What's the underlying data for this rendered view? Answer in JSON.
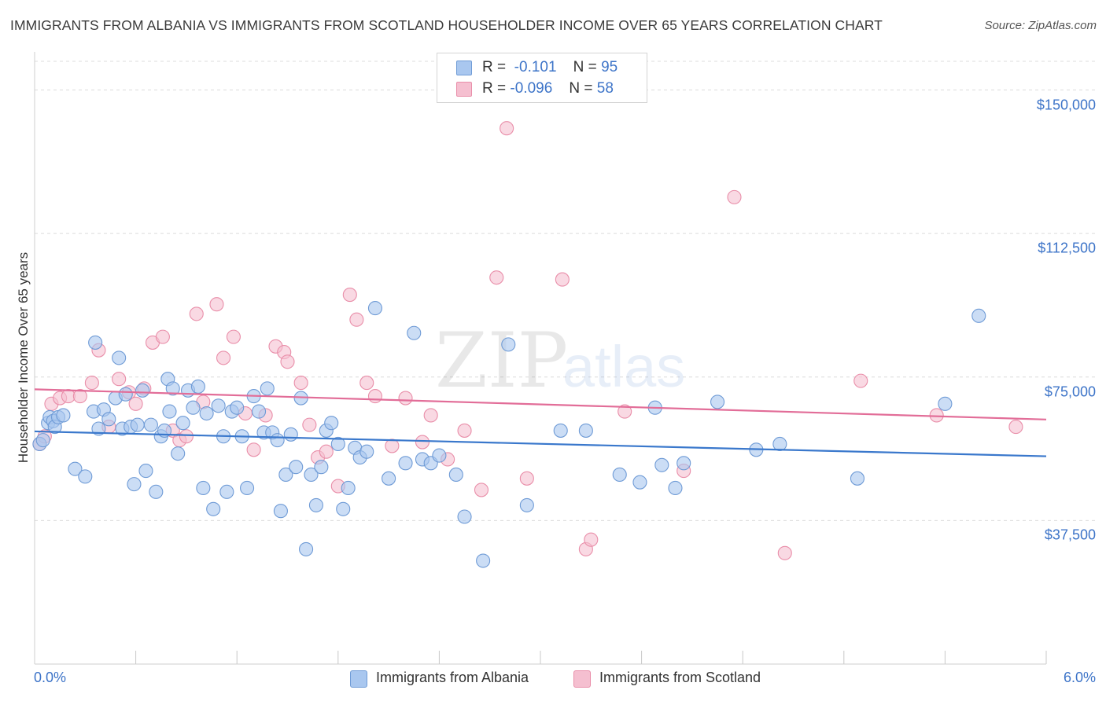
{
  "title": "IMMIGRANTS FROM ALBANIA VS IMMIGRANTS FROM SCOTLAND HOUSEHOLDER INCOME OVER 65 YEARS CORRELATION CHART",
  "source": "Source: ZipAtlas.com",
  "watermark": {
    "zip": "ZIP",
    "atlas": "atlas"
  },
  "colors": {
    "blue_fill": "#a9c7ef",
    "blue_stroke": "#6f9bd6",
    "blue_line": "#3a78cc",
    "pink_fill": "#f5bfd0",
    "pink_stroke": "#e98ea9",
    "pink_line": "#e26d98",
    "axis_text": "#3d74c8",
    "grid": "#dcdcdc"
  },
  "legend": {
    "r_label": "R =",
    "n_label": "N =",
    "rows": [
      {
        "name": "Immigrants from Albania",
        "r": "-0.101",
        "n": "95"
      },
      {
        "name": "Immigrants from Scotland",
        "r": "-0.096",
        "n": "58"
      }
    ]
  },
  "chart_data": {
    "type": "scatter",
    "title": "IMMIGRANTS FROM ALBANIA VS IMMIGRANTS FROM SCOTLAND HOUSEHOLDER INCOME OVER 65 YEARS CORRELATION CHART",
    "xlabel": "",
    "ylabel": "Householder Income Over 65 years",
    "xlim": [
      0,
      6
    ],
    "ylim": [
      0,
      157500
    ],
    "x_tick_labels": [
      "0.0%",
      "6.0%"
    ],
    "y_ticks": [
      37500,
      75000,
      112500,
      150000
    ],
    "y_tick_labels": [
      "$37,500",
      "$75,000",
      "$112,500",
      "$150,000"
    ],
    "legend_position": "top-center",
    "series": [
      {
        "name": "Immigrants from Albania",
        "trend": {
          "x": [
            0,
            6
          ],
          "y": [
            60800,
            54300
          ]
        },
        "points": [
          [
            0.03,
            57500
          ],
          [
            0.05,
            58500
          ],
          [
            0.08,
            63000
          ],
          [
            0.09,
            64500
          ],
          [
            0.11,
            63500
          ],
          [
            0.12,
            62000
          ],
          [
            0.14,
            64500
          ],
          [
            0.17,
            65000
          ],
          [
            0.24,
            51000
          ],
          [
            0.3,
            49000
          ],
          [
            0.35,
            66000
          ],
          [
            0.36,
            84000
          ],
          [
            0.38,
            61500
          ],
          [
            0.41,
            66500
          ],
          [
            0.44,
            64000
          ],
          [
            0.48,
            69500
          ],
          [
            0.5,
            80000
          ],
          [
            0.52,
            61500
          ],
          [
            0.54,
            70500
          ],
          [
            0.57,
            62000
          ],
          [
            0.59,
            47000
          ],
          [
            0.61,
            62500
          ],
          [
            0.64,
            71500
          ],
          [
            0.66,
            50500
          ],
          [
            0.69,
            62500
          ],
          [
            0.72,
            45000
          ],
          [
            0.75,
            59500
          ],
          [
            0.77,
            61000
          ],
          [
            0.79,
            74500
          ],
          [
            0.8,
            66000
          ],
          [
            0.82,
            72000
          ],
          [
            0.85,
            55000
          ],
          [
            0.88,
            63000
          ],
          [
            0.91,
            71500
          ],
          [
            0.94,
            67000
          ],
          [
            0.97,
            72500
          ],
          [
            1.0,
            46000
          ],
          [
            1.02,
            65500
          ],
          [
            1.06,
            40500
          ],
          [
            1.09,
            67500
          ],
          [
            1.12,
            59500
          ],
          [
            1.14,
            45000
          ],
          [
            1.17,
            66000
          ],
          [
            1.2,
            67000
          ],
          [
            1.23,
            59500
          ],
          [
            1.26,
            46000
          ],
          [
            1.3,
            70000
          ],
          [
            1.33,
            66000
          ],
          [
            1.36,
            60500
          ],
          [
            1.38,
            72000
          ],
          [
            1.41,
            60500
          ],
          [
            1.44,
            58500
          ],
          [
            1.46,
            40000
          ],
          [
            1.49,
            49500
          ],
          [
            1.52,
            60000
          ],
          [
            1.55,
            51500
          ],
          [
            1.58,
            69500
          ],
          [
            1.61,
            30000
          ],
          [
            1.64,
            49500
          ],
          [
            1.67,
            41500
          ],
          [
            1.7,
            51500
          ],
          [
            1.73,
            61000
          ],
          [
            1.76,
            63000
          ],
          [
            1.8,
            57500
          ],
          [
            1.83,
            40500
          ],
          [
            1.86,
            46000
          ],
          [
            1.9,
            56500
          ],
          [
            1.93,
            54000
          ],
          [
            1.97,
            55500
          ],
          [
            2.1,
            48500
          ],
          [
            2.2,
            52500
          ],
          [
            2.25,
            86500
          ],
          [
            2.3,
            53500
          ],
          [
            2.35,
            52500
          ],
          [
            2.4,
            54500
          ],
          [
            2.5,
            49500
          ],
          [
            2.55,
            38500
          ],
          [
            2.66,
            27000
          ],
          [
            2.81,
            83500
          ],
          [
            2.92,
            41500
          ],
          [
            3.12,
            61000
          ],
          [
            3.27,
            61000
          ],
          [
            3.47,
            49500
          ],
          [
            3.59,
            47500
          ],
          [
            3.68,
            67000
          ],
          [
            3.72,
            52000
          ],
          [
            3.8,
            46000
          ],
          [
            3.85,
            52500
          ],
          [
            4.05,
            68500
          ],
          [
            4.28,
            56000
          ],
          [
            4.42,
            57500
          ],
          [
            4.88,
            48500
          ],
          [
            5.4,
            68000
          ],
          [
            5.6,
            91000
          ],
          [
            2.02,
            93000
          ]
        ]
      },
      {
        "name": "Immigrants from Scotland",
        "trend": {
          "x": [
            0,
            6
          ],
          "y": [
            71800,
            63900
          ]
        },
        "points": [
          [
            0.03,
            57500
          ],
          [
            0.06,
            59500
          ],
          [
            0.1,
            68000
          ],
          [
            0.15,
            69500
          ],
          [
            0.2,
            70000
          ],
          [
            0.27,
            70000
          ],
          [
            0.34,
            73500
          ],
          [
            0.38,
            82000
          ],
          [
            0.44,
            62000
          ],
          [
            0.5,
            74500
          ],
          [
            0.56,
            71000
          ],
          [
            0.6,
            68000
          ],
          [
            0.65,
            72000
          ],
          [
            0.7,
            84000
          ],
          [
            0.76,
            85500
          ],
          [
            0.82,
            61000
          ],
          [
            0.86,
            58500
          ],
          [
            0.9,
            59500
          ],
          [
            0.96,
            91500
          ],
          [
            1.0,
            68500
          ],
          [
            1.08,
            94000
          ],
          [
            1.12,
            80000
          ],
          [
            1.18,
            85500
          ],
          [
            1.25,
            65500
          ],
          [
            1.3,
            56000
          ],
          [
            1.37,
            65000
          ],
          [
            1.43,
            83000
          ],
          [
            1.48,
            81500
          ],
          [
            1.5,
            79000
          ],
          [
            1.58,
            73500
          ],
          [
            1.63,
            62500
          ],
          [
            1.68,
            54000
          ],
          [
            1.73,
            55500
          ],
          [
            1.8,
            46500
          ],
          [
            1.87,
            96500
          ],
          [
            1.91,
            90000
          ],
          [
            1.97,
            73500
          ],
          [
            2.02,
            70000
          ],
          [
            2.12,
            57000
          ],
          [
            2.2,
            69500
          ],
          [
            2.3,
            58000
          ],
          [
            2.35,
            65000
          ],
          [
            2.45,
            53500
          ],
          [
            2.55,
            61000
          ],
          [
            2.65,
            45500
          ],
          [
            2.74,
            101000
          ],
          [
            2.8,
            140000
          ],
          [
            2.92,
            48500
          ],
          [
            3.13,
            100500
          ],
          [
            3.27,
            30000
          ],
          [
            3.3,
            32500
          ],
          [
            3.5,
            66000
          ],
          [
            3.85,
            50500
          ],
          [
            4.15,
            122000
          ],
          [
            4.45,
            29000
          ],
          [
            4.9,
            74000
          ],
          [
            5.35,
            65000
          ],
          [
            5.82,
            62000
          ]
        ]
      }
    ]
  }
}
